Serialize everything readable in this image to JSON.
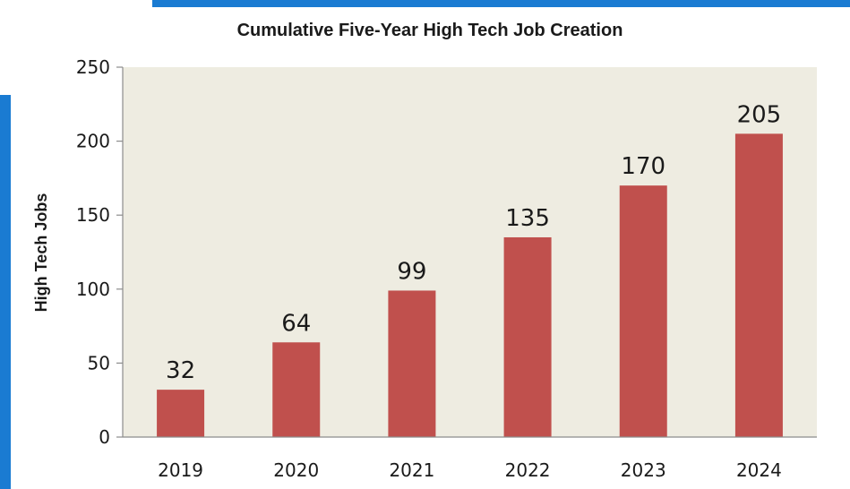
{
  "chart_data": {
    "type": "bar",
    "title": "Cumulative Five-Year High Tech Job Creation",
    "xlabel": "",
    "ylabel": "High Tech Jobs",
    "categories": [
      "2019",
      "2020",
      "2021",
      "2022",
      "2023",
      "2024"
    ],
    "values": [
      32,
      64,
      99,
      135,
      170,
      205
    ],
    "value_labels": [
      "32",
      "64",
      "99",
      "135",
      "170",
      "205"
    ],
    "ylim": [
      0,
      250
    ],
    "yticks": [
      0,
      50,
      100,
      150,
      200,
      250
    ],
    "ytick_labels": [
      "0",
      "50",
      "100",
      "150",
      "200",
      "250"
    ],
    "grid": false,
    "legend": "none",
    "colors": {
      "bar": "#c0504d",
      "plot_background": "#eeece1",
      "frame_accent": "#1a7bd2"
    }
  }
}
